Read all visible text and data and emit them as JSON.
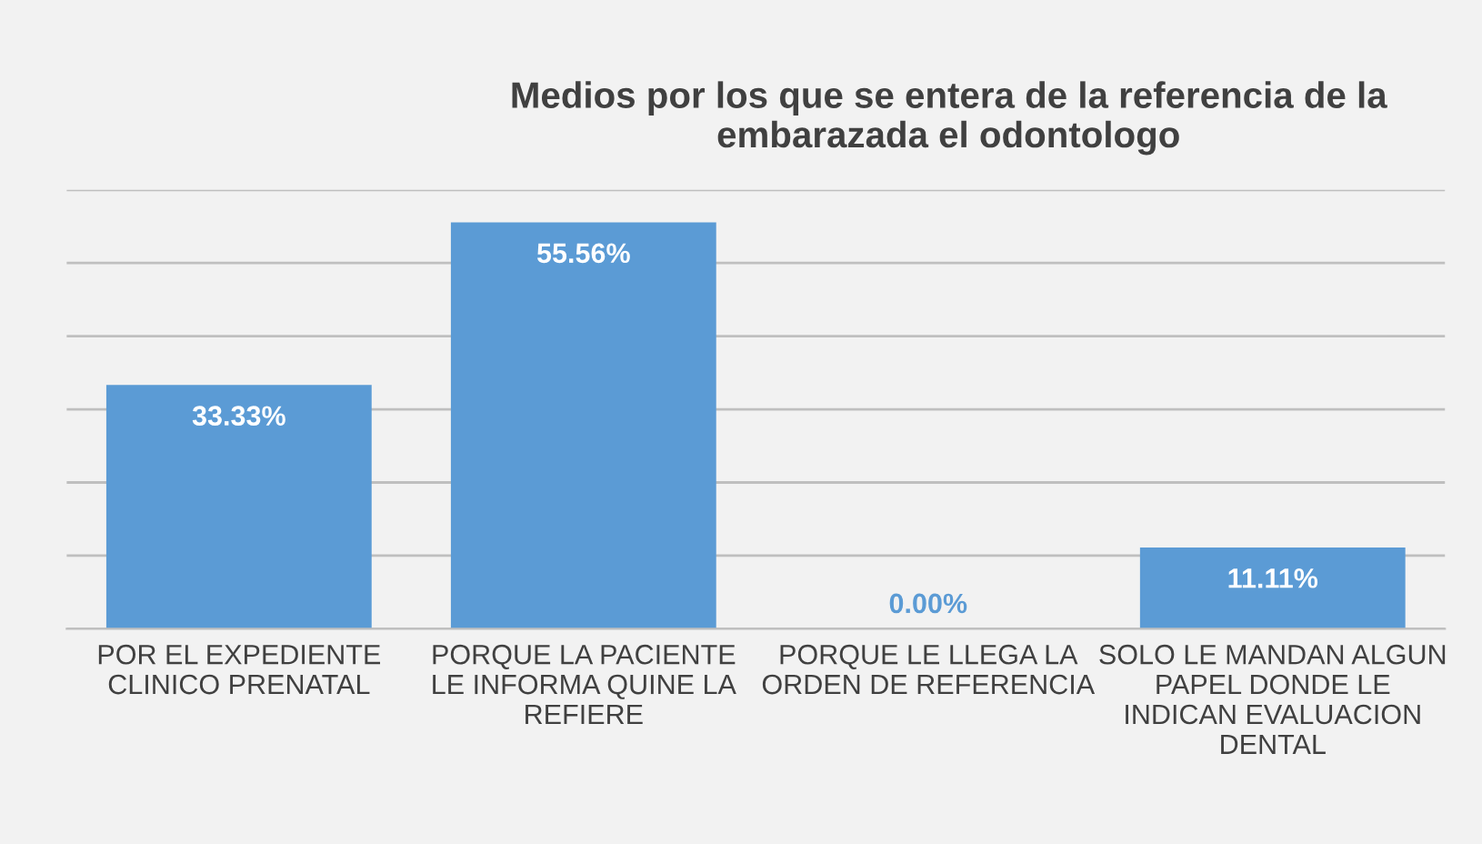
{
  "chart_data": {
    "type": "bar",
    "title": "Medios por los que se entera de la referencia de la embarazada el odontologo",
    "categories": [
      "POR EL EXPEDIENTE CLINICO PRENATAL",
      "PORQUE LA PACIENTE LE INFORMA QUINE LA REFIERE",
      "PORQUE LE LLEGA LA ORDEN DE REFERENCIA",
      "SOLO LE MANDAN ALGUN PAPEL DONDE LE INDICAN EVALUACION DENTAL"
    ],
    "values": [
      33.33,
      55.56,
      0.0,
      11.11
    ],
    "value_labels": [
      "33.33%",
      "55.56%",
      "0.00%",
      "11.11%"
    ],
    "color": "#5b9bd5",
    "ylim": [
      0,
      60
    ],
    "yticks": [
      {
        "value": 0,
        "label": null
      },
      {
        "value": 10,
        "label": null
      },
      {
        "value": 20,
        "label": null
      },
      {
        "value": 30,
        "label": null
      },
      {
        "value": 40,
        "label": null
      },
      {
        "value": 50,
        "label": null
      },
      {
        "value": 60,
        "label": null
      }
    ],
    "grid": "y",
    "tick_labels": "x",
    "legend": false
  }
}
